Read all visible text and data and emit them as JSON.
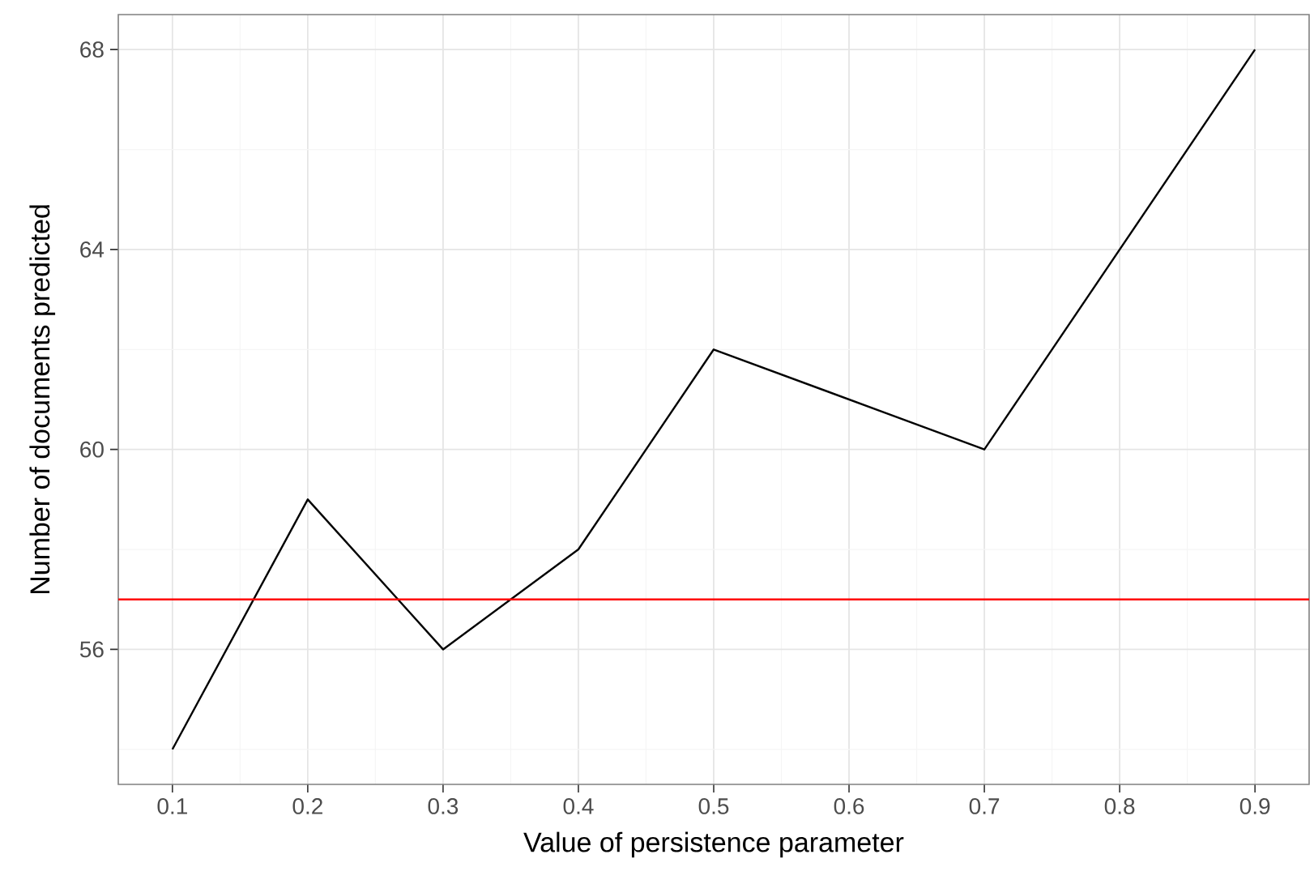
{
  "chart_data": {
    "type": "line",
    "xlabel": "Value of persistence parameter",
    "ylabel": "Number of documents predicted",
    "x": [
      0.1,
      0.2,
      0.3,
      0.4,
      0.5,
      0.7,
      0.9
    ],
    "series": [
      {
        "color": "#000000",
        "values": [
          54,
          59,
          56,
          58,
          62,
          60,
          68
        ]
      }
    ],
    "xlim": [
      0.06,
      0.94
    ],
    "ylim": [
      53.3,
      68.7
    ],
    "xticks": [
      0.1,
      0.2,
      0.3,
      0.4,
      0.5,
      0.6,
      0.7,
      0.8,
      0.9
    ],
    "yticks": [
      56,
      60,
      64,
      68
    ],
    "grid": true,
    "marker": "none",
    "line_style": "solid",
    "ref_lines": [
      {
        "axis": "y",
        "value": 57,
        "color": "#ff0000"
      }
    ]
  }
}
